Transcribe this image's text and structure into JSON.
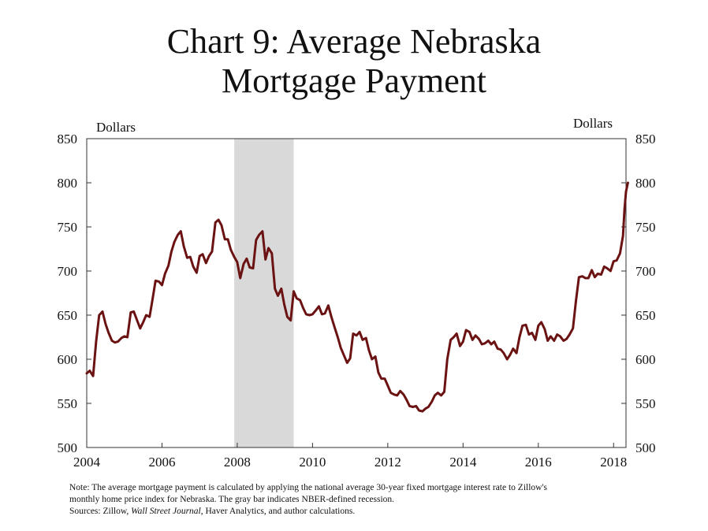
{
  "chart_data": {
    "type": "line",
    "title_lines": [
      "Chart 9: Average Nebraska",
      "Mortgage Payment"
    ],
    "ylabel_left": "Dollars",
    "ylabel_right": "Dollars",
    "ylim": [
      500,
      850
    ],
    "yticks": [
      500,
      550,
      600,
      650,
      700,
      750,
      800,
      850
    ],
    "xlim": [
      2004,
      2018.33
    ],
    "xticks": [
      2004,
      2006,
      2008,
      2010,
      2012,
      2014,
      2016,
      2018
    ],
    "recession": {
      "start": 2007.92,
      "end": 2009.5,
      "color": "#d9d9d9"
    },
    "series": [
      {
        "color": "#6b1212",
        "points": [
          [
            2004.0,
            584
          ],
          [
            2004.08,
            587
          ],
          [
            2004.17,
            581
          ],
          [
            2004.25,
            620
          ],
          [
            2004.33,
            650
          ],
          [
            2004.42,
            654
          ],
          [
            2004.5,
            640
          ],
          [
            2004.58,
            630
          ],
          [
            2004.67,
            621
          ],
          [
            2004.75,
            619
          ],
          [
            2004.83,
            620
          ],
          [
            2004.92,
            624
          ],
          [
            2005.0,
            626
          ],
          [
            2005.08,
            625
          ],
          [
            2005.17,
            653
          ],
          [
            2005.25,
            654
          ],
          [
            2005.33,
            645
          ],
          [
            2005.42,
            635
          ],
          [
            2005.5,
            642
          ],
          [
            2005.58,
            650
          ],
          [
            2005.67,
            648
          ],
          [
            2005.75,
            668
          ],
          [
            2005.83,
            689
          ],
          [
            2005.92,
            688
          ],
          [
            2006.0,
            684
          ],
          [
            2006.08,
            697
          ],
          [
            2006.17,
            706
          ],
          [
            2006.25,
            722
          ],
          [
            2006.33,
            733
          ],
          [
            2006.42,
            741
          ],
          [
            2006.5,
            745
          ],
          [
            2006.58,
            728
          ],
          [
            2006.67,
            715
          ],
          [
            2006.75,
            716
          ],
          [
            2006.83,
            705
          ],
          [
            2006.92,
            698
          ],
          [
            2007.0,
            717
          ],
          [
            2007.08,
            719
          ],
          [
            2007.17,
            709
          ],
          [
            2007.25,
            717
          ],
          [
            2007.33,
            722
          ],
          [
            2007.42,
            755
          ],
          [
            2007.5,
            758
          ],
          [
            2007.58,
            752
          ],
          [
            2007.67,
            736
          ],
          [
            2007.75,
            736
          ],
          [
            2007.83,
            724
          ],
          [
            2007.92,
            716
          ],
          [
            2008.0,
            710
          ],
          [
            2008.08,
            692
          ],
          [
            2008.17,
            708
          ],
          [
            2008.25,
            714
          ],
          [
            2008.33,
            704
          ],
          [
            2008.42,
            703
          ],
          [
            2008.5,
            735
          ],
          [
            2008.58,
            741
          ],
          [
            2008.67,
            745
          ],
          [
            2008.75,
            713
          ],
          [
            2008.83,
            726
          ],
          [
            2008.92,
            720
          ],
          [
            2009.0,
            680
          ],
          [
            2009.08,
            672
          ],
          [
            2009.17,
            680
          ],
          [
            2009.25,
            662
          ],
          [
            2009.33,
            648
          ],
          [
            2009.42,
            644
          ],
          [
            2009.5,
            677
          ],
          [
            2009.58,
            669
          ],
          [
            2009.67,
            667
          ],
          [
            2009.75,
            658
          ],
          [
            2009.83,
            651
          ],
          [
            2009.92,
            650
          ],
          [
            2010.0,
            651
          ],
          [
            2010.08,
            655
          ],
          [
            2010.17,
            660
          ],
          [
            2010.25,
            651
          ],
          [
            2010.33,
            652
          ],
          [
            2010.42,
            661
          ],
          [
            2010.5,
            648
          ],
          [
            2010.58,
            637
          ],
          [
            2010.67,
            625
          ],
          [
            2010.75,
            613
          ],
          [
            2010.83,
            605
          ],
          [
            2010.92,
            596
          ],
          [
            2011.0,
            601
          ],
          [
            2011.08,
            629
          ],
          [
            2011.17,
            627
          ],
          [
            2011.25,
            631
          ],
          [
            2011.33,
            622
          ],
          [
            2011.42,
            624
          ],
          [
            2011.5,
            610
          ],
          [
            2011.58,
            600
          ],
          [
            2011.67,
            603
          ],
          [
            2011.75,
            585
          ],
          [
            2011.83,
            578
          ],
          [
            2011.92,
            578
          ],
          [
            2012.0,
            570
          ],
          [
            2012.08,
            562
          ],
          [
            2012.17,
            560
          ],
          [
            2012.25,
            559
          ],
          [
            2012.33,
            564
          ],
          [
            2012.42,
            560
          ],
          [
            2012.5,
            554
          ],
          [
            2012.58,
            547
          ],
          [
            2012.67,
            546
          ],
          [
            2012.75,
            547
          ],
          [
            2012.83,
            542
          ],
          [
            2012.92,
            541
          ],
          [
            2013.0,
            544
          ],
          [
            2013.08,
            546
          ],
          [
            2013.17,
            552
          ],
          [
            2013.25,
            559
          ],
          [
            2013.33,
            562
          ],
          [
            2013.42,
            559
          ],
          [
            2013.5,
            563
          ],
          [
            2013.58,
            600
          ],
          [
            2013.67,
            622
          ],
          [
            2013.75,
            625
          ],
          [
            2013.83,
            629
          ],
          [
            2013.92,
            615
          ],
          [
            2014.0,
            620
          ],
          [
            2014.08,
            633
          ],
          [
            2014.17,
            631
          ],
          [
            2014.25,
            622
          ],
          [
            2014.33,
            627
          ],
          [
            2014.42,
            623
          ],
          [
            2014.5,
            617
          ],
          [
            2014.58,
            618
          ],
          [
            2014.67,
            621
          ],
          [
            2014.75,
            617
          ],
          [
            2014.83,
            620
          ],
          [
            2014.92,
            612
          ],
          [
            2015.0,
            611
          ],
          [
            2015.08,
            607
          ],
          [
            2015.17,
            600
          ],
          [
            2015.25,
            605
          ],
          [
            2015.33,
            612
          ],
          [
            2015.42,
            607
          ],
          [
            2015.5,
            625
          ],
          [
            2015.58,
            638
          ],
          [
            2015.67,
            639
          ],
          [
            2015.75,
            628
          ],
          [
            2015.83,
            630
          ],
          [
            2015.92,
            622
          ],
          [
            2016.0,
            638
          ],
          [
            2016.08,
            642
          ],
          [
            2016.17,
            634
          ],
          [
            2016.25,
            621
          ],
          [
            2016.33,
            626
          ],
          [
            2016.42,
            621
          ],
          [
            2016.5,
            628
          ],
          [
            2016.58,
            626
          ],
          [
            2016.67,
            621
          ],
          [
            2016.75,
            623
          ],
          [
            2016.83,
            628
          ],
          [
            2016.92,
            635
          ],
          [
            2017.0,
            666
          ],
          [
            2017.08,
            693
          ],
          [
            2017.17,
            694
          ],
          [
            2017.25,
            692
          ],
          [
            2017.33,
            692
          ],
          [
            2017.42,
            701
          ],
          [
            2017.5,
            693
          ],
          [
            2017.58,
            697
          ],
          [
            2017.67,
            696
          ],
          [
            2017.75,
            705
          ],
          [
            2017.83,
            703
          ],
          [
            2017.92,
            700
          ],
          [
            2018.0,
            711
          ],
          [
            2018.08,
            712
          ],
          [
            2018.17,
            720
          ],
          [
            2018.25,
            740
          ],
          [
            2018.29,
            770
          ],
          [
            2018.33,
            790
          ],
          [
            2018.38,
            800
          ]
        ]
      }
    ]
  },
  "notes": {
    "line1": "Note: The average mortgage payment is calculated by applying the national average 30-year fixed mortgage interest rate to Zillow's",
    "line2": "monthly home price index for Nebraska. The gray bar indicates NBER-defined recession.",
    "sources_prefix": "Sources: Zillow, ",
    "sources_italic": "Wall Street Journal",
    "sources_suffix": ", Haver Analytics, and author calculations."
  }
}
